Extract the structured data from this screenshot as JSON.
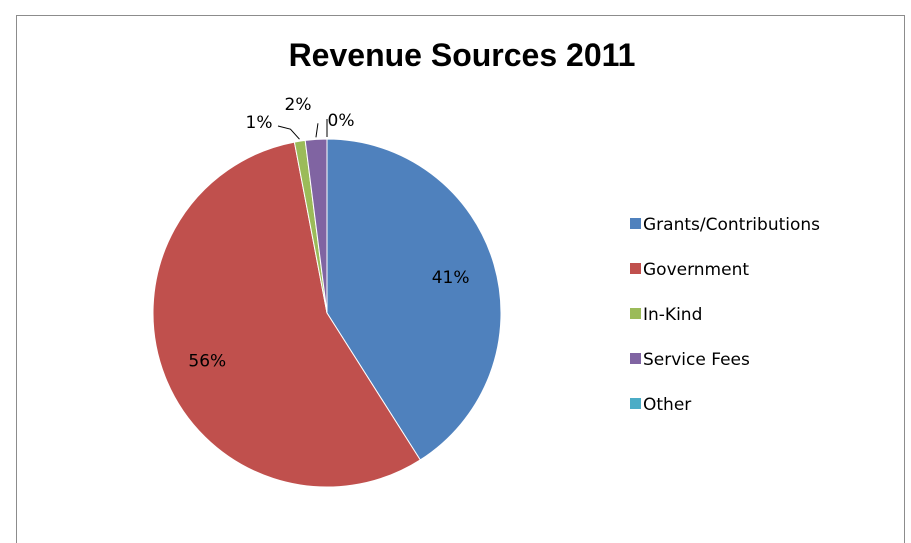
{
  "chart_data": {
    "type": "pie",
    "title": "Revenue Sources 2011",
    "categories": [
      "Grants/Contributions",
      "Government",
      "In-Kind",
      "Service Fees",
      "Other"
    ],
    "values": [
      41,
      56,
      1,
      2,
      0
    ],
    "data_labels": [
      "41%",
      "56%",
      "1%",
      "2%",
      "0%"
    ],
    "colors": [
      "#4f81bd",
      "#c0504d",
      "#9bbb59",
      "#8064a2",
      "#4bacc6"
    ],
    "legend_position": "right",
    "start_angle": "12 o'clock, clockwise"
  }
}
